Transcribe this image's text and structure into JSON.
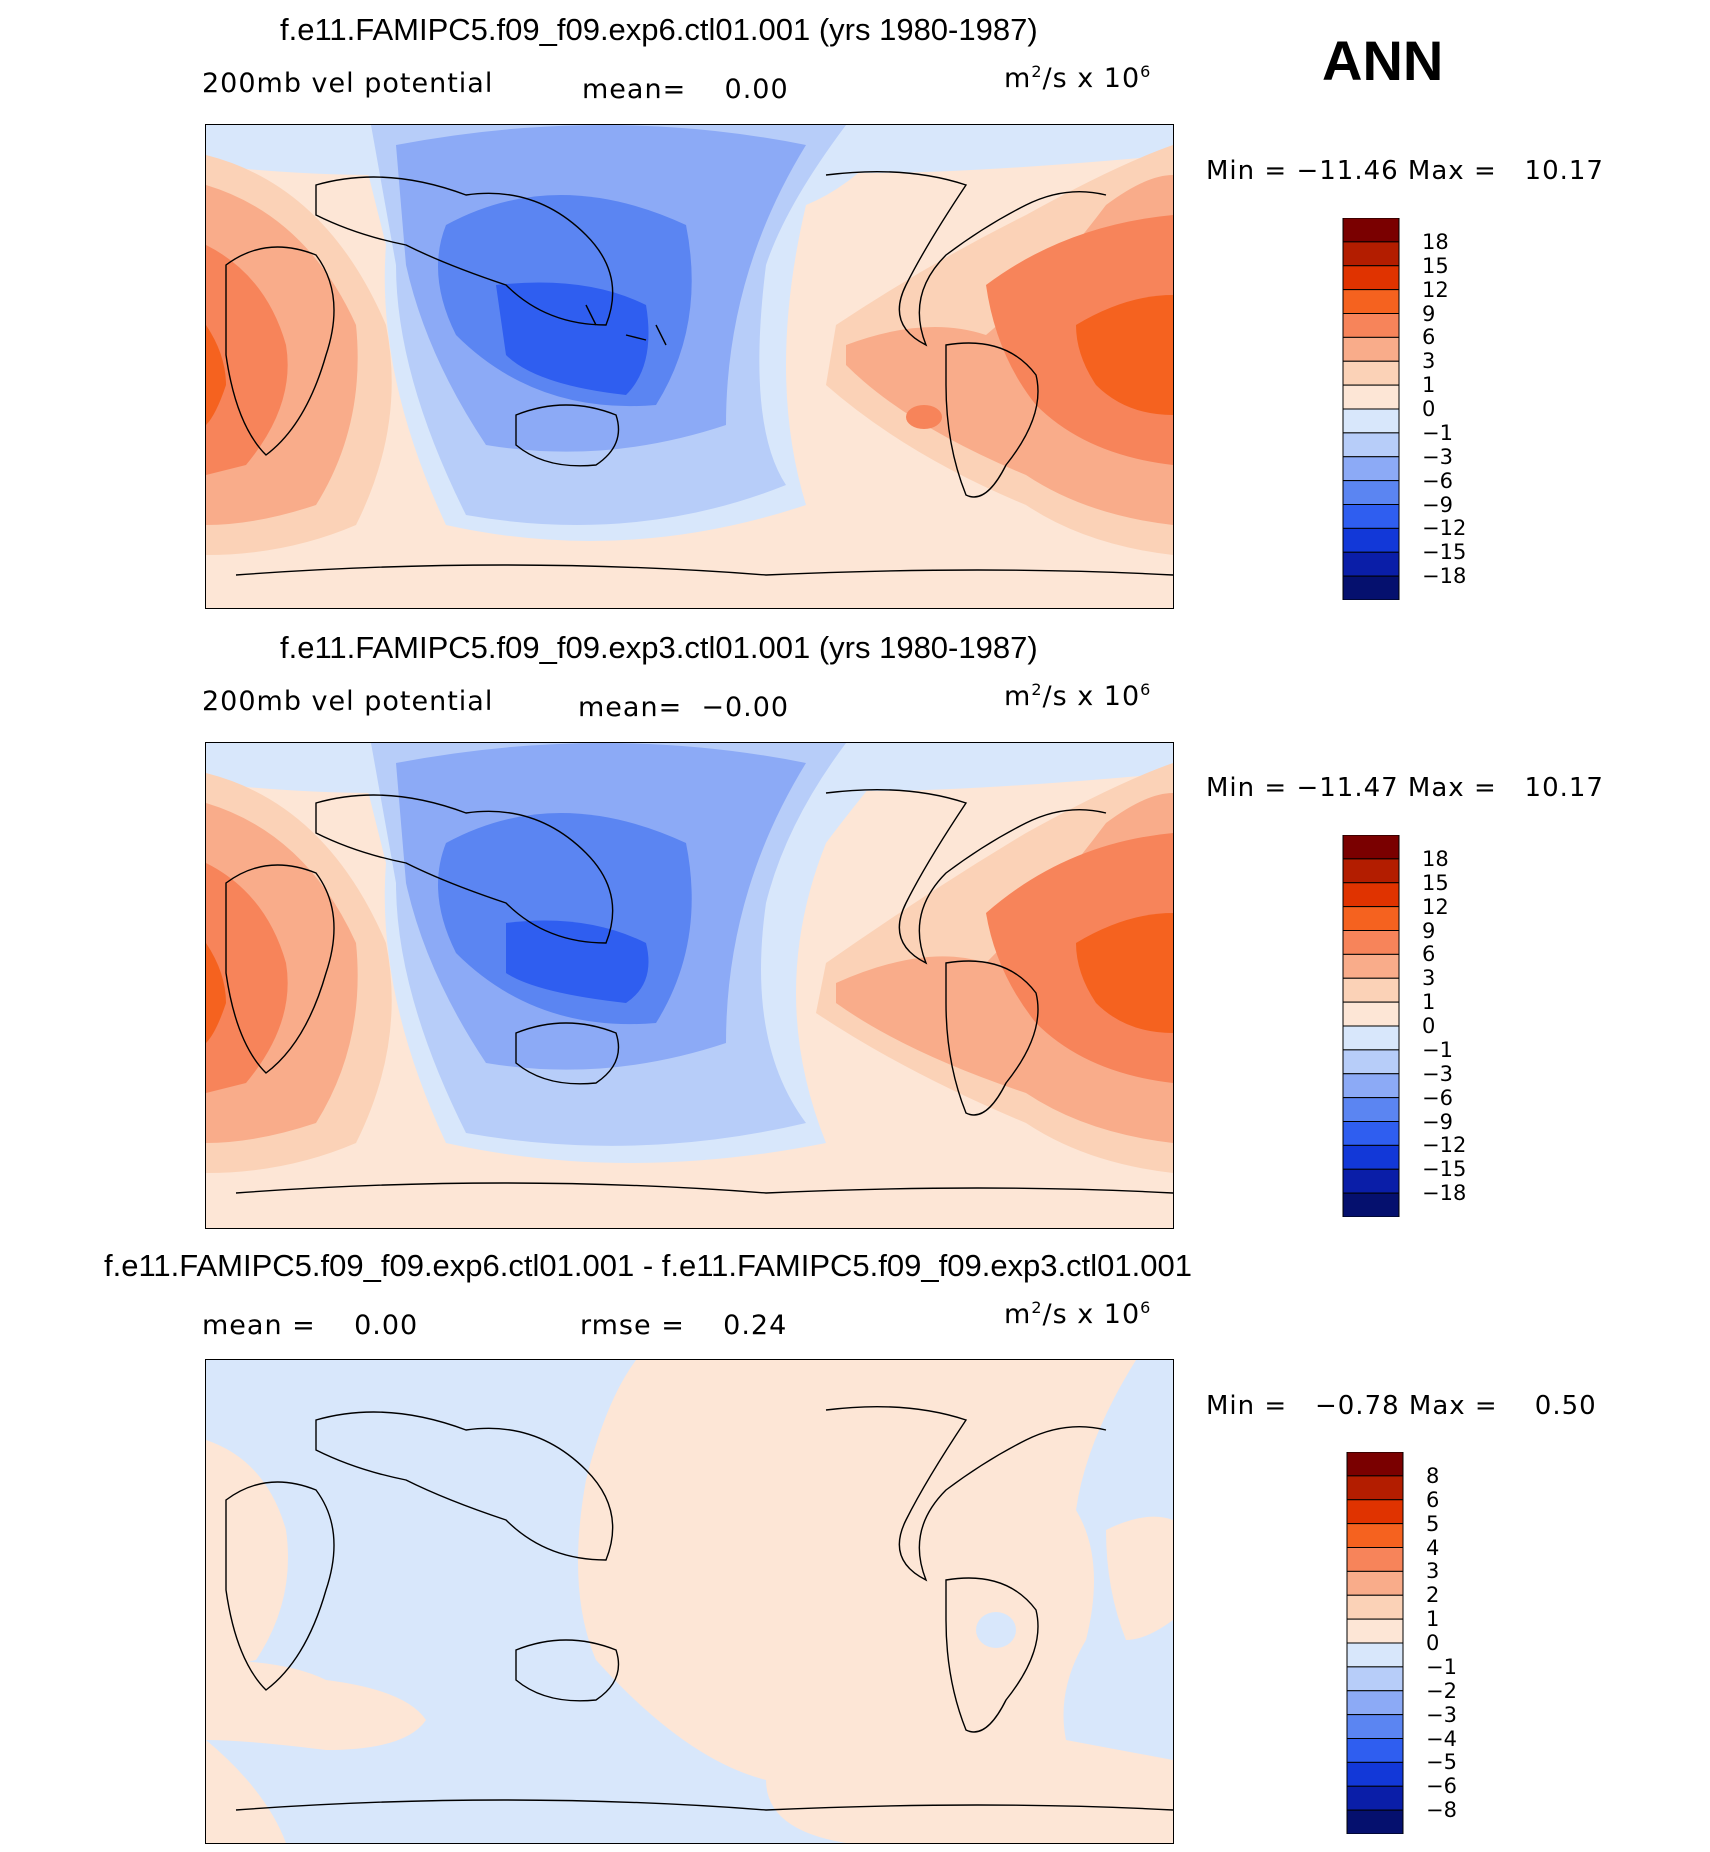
{
  "season": "ANN",
  "panels": [
    {
      "id": "top",
      "title": "f.e11.FAMIPC5.f09_f09.exp6.ctl01.001 (yrs 1980-1987)",
      "variable": "200mb vel potential",
      "mean_text": "mean=    0.00",
      "units_base": "m",
      "units_sup1": "2",
      "units_mid": "/s x 10",
      "units_sup2": "6",
      "minmax": "Min = −11.46 Max =   10.17",
      "colorbar": {
        "labels": [
          "18",
          "15",
          "12",
          "9",
          "6",
          "3",
          "1",
          "0",
          "−1",
          "−3",
          "−6",
          "−9",
          "−12",
          "−15",
          "−18"
        ],
        "colors": [
          "#7a0000",
          "#b31d00",
          "#e03300",
          "#f5621f",
          "#f7845a",
          "#f9ac8a",
          "#fbd2b7",
          "#fde6d6",
          "#d8e7fb",
          "#b7cdf9",
          "#8caaf6",
          "#5b85f2",
          "#2f5ef0",
          "#1238d8",
          "#0a1ea8",
          "#05106e"
        ]
      }
    },
    {
      "id": "middle",
      "title": "f.e11.FAMIPC5.f09_f09.exp3.ctl01.001 (yrs 1980-1987)",
      "variable": "200mb vel potential",
      "mean_text": "mean=  −0.00",
      "units_base": "m",
      "units_sup1": "2",
      "units_mid": "/s x 10",
      "units_sup2": "6",
      "minmax": "Min = −11.47 Max =   10.17",
      "colorbar": {
        "labels": [
          "18",
          "15",
          "12",
          "9",
          "6",
          "3",
          "1",
          "0",
          "−1",
          "−3",
          "−6",
          "−9",
          "−12",
          "−15",
          "−18"
        ],
        "colors": [
          "#7a0000",
          "#b31d00",
          "#e03300",
          "#f5621f",
          "#f7845a",
          "#f9ac8a",
          "#fbd2b7",
          "#fde6d6",
          "#d8e7fb",
          "#b7cdf9",
          "#8caaf6",
          "#5b85f2",
          "#2f5ef0",
          "#1238d8",
          "#0a1ea8",
          "#05106e"
        ]
      }
    },
    {
      "id": "bottom",
      "title": "f.e11.FAMIPC5.f09_f09.exp6.ctl01.001 - f.e11.FAMIPC5.f09_f09.exp3.ctl01.001",
      "mean_text": "mean =    0.00",
      "rmse_text": "rmse =    0.24",
      "units_base": "m",
      "units_sup1": "2",
      "units_mid": "/s x 10",
      "units_sup2": "6",
      "minmax": "Min =   −0.78 Max =    0.50",
      "colorbar": {
        "labels": [
          "8",
          "6",
          "5",
          "4",
          "3",
          "2",
          "1",
          "0",
          "−1",
          "−2",
          "−3",
          "−4",
          "−5",
          "−6",
          "−8"
        ],
        "colors": [
          "#7a0000",
          "#b31d00",
          "#e03300",
          "#f5621f",
          "#f7845a",
          "#f9ac8a",
          "#fbd2b7",
          "#fde6d6",
          "#d8e7fb",
          "#b7cdf9",
          "#8caaf6",
          "#5b85f2",
          "#2f5ef0",
          "#1238d8",
          "#0a1ea8",
          "#05106e"
        ]
      }
    }
  ]
}
